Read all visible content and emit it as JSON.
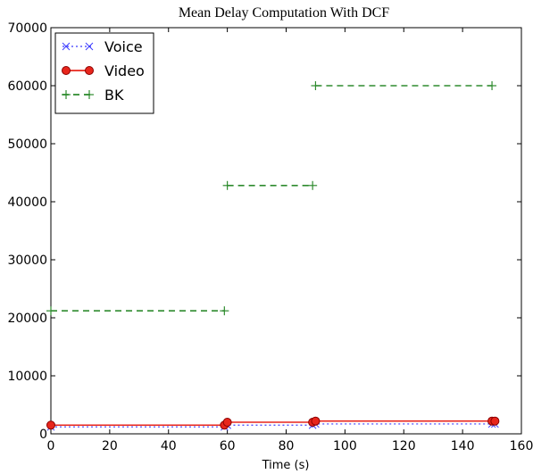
{
  "chart_data": {
    "type": "line",
    "title": "Mean Delay Computation With DCF",
    "xlabel": "Time (s)",
    "ylabel": "",
    "xlim": [
      0,
      160
    ],
    "ylim": [
      0,
      70000
    ],
    "x_ticks": [
      "0",
      "20",
      "40",
      "60",
      "80",
      "100",
      "120",
      "140",
      "160"
    ],
    "y_ticks": [
      "0",
      "10000",
      "20000",
      "30000",
      "40000",
      "50000",
      "60000",
      "70000"
    ],
    "grid": false,
    "legend_position": "top-left",
    "series": [
      {
        "name": "Voice",
        "color": "#3b3bff",
        "line_style": "dotted",
        "marker": "x",
        "x": [
          0,
          59,
          60,
          89,
          90,
          150,
          151
        ],
        "y": [
          1200,
          1200,
          1500,
          1500,
          1700,
          1700,
          1700
        ]
      },
      {
        "name": "Video",
        "color": "#e8261c",
        "line_style": "solid",
        "marker": "o",
        "x": [
          0,
          59,
          60,
          89,
          90,
          150,
          151
        ],
        "y": [
          1500,
          1500,
          2000,
          2000,
          2200,
          2200,
          2200
        ]
      },
      {
        "name": "BK",
        "color": "#2e8b2e",
        "line_style": "dashed",
        "marker": "+",
        "segments": [
          {
            "x": [
              0,
              59
            ],
            "y": [
              21200,
              21200
            ]
          },
          {
            "x": [
              60,
              89
            ],
            "y": [
              42800,
              42800
            ]
          },
          {
            "x": [
              90,
              150
            ],
            "y": [
              60000,
              60000
            ]
          }
        ],
        "x": [
          0,
          59,
          60,
          89,
          90,
          150
        ],
        "y": [
          21200,
          21200,
          42800,
          42800,
          60000,
          60000
        ]
      }
    ]
  }
}
